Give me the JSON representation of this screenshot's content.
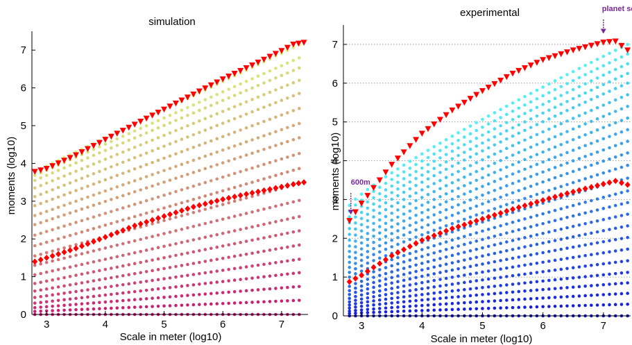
{
  "chart_data": [
    {
      "type": "scatter",
      "title": "simulation",
      "xlabel": "Scale in meter (log10)",
      "ylabel": "moments (log10)",
      "xlim": [
        2.75,
        7.45
      ],
      "ylim": [
        0,
        7.5
      ],
      "xticks": [
        3,
        4,
        5,
        6,
        7
      ],
      "yticks": [
        0,
        1,
        2,
        3,
        4,
        5,
        6,
        7
      ],
      "grid": false,
      "dot_curves": {
        "x_start": 2.8,
        "x_end": 7.38,
        "x_step": 0.1,
        "count": 20,
        "start_values": [
          0.0,
          0.08,
          0.18,
          0.3,
          0.45,
          0.62,
          0.82,
          1.05,
          1.3,
          1.55,
          1.82,
          2.1,
          2.38,
          2.62,
          2.88,
          3.12,
          3.35,
          3.55,
          3.68,
          3.78
        ],
        "end_values": [
          0.0,
          0.38,
          0.75,
          1.12,
          1.48,
          1.86,
          2.24,
          2.62,
          3.05,
          3.5,
          3.9,
          4.3,
          4.72,
          5.1,
          5.5,
          5.9,
          6.25,
          6.58,
          6.85,
          7.2
        ],
        "color_gradient": [
          "#c81472",
          "#d9f07c"
        ]
      },
      "series": [
        {
          "name": "",
          "marker": "triangle-down",
          "color": "#ff0000",
          "x": [
            2.8,
            3.0,
            3.5,
            4.0,
            4.5,
            5.0,
            5.5,
            6.0,
            6.5,
            7.0,
            7.2,
            7.38
          ],
          "y": [
            3.78,
            3.86,
            4.22,
            4.63,
            5.03,
            5.43,
            5.83,
            6.23,
            6.6,
            6.98,
            7.15,
            7.2
          ]
        },
        {
          "name": "",
          "marker": "diamond",
          "color": "#ff0000",
          "x": [
            2.8,
            3.0,
            3.5,
            4.0,
            4.5,
            5.0,
            5.5,
            6.0,
            6.5,
            7.0,
            7.2,
            7.38
          ],
          "y": [
            1.4,
            1.5,
            1.75,
            2.05,
            2.35,
            2.6,
            2.85,
            3.05,
            3.22,
            3.38,
            3.45,
            3.5
          ]
        }
      ]
    },
    {
      "type": "scatter",
      "title": "experimental",
      "xlabel": "Scale in meter (log10)",
      "ylabel": "moments (log10)",
      "xlim": [
        2.7,
        7.45
      ],
      "ylim": [
        0,
        7.5
      ],
      "xticks": [
        3,
        4,
        5,
        6,
        7
      ],
      "yticks": [
        0,
        1,
        2,
        3,
        4,
        5,
        6,
        7
      ],
      "grid": "horizontal dotted",
      "dot_curves": {
        "x_start": 2.8,
        "x_end": 7.4,
        "x_step": 0.1,
        "count": 25,
        "start_values": [
          0.0,
          0.06,
          0.12,
          0.2,
          0.28,
          0.36,
          0.45,
          0.55,
          0.65,
          0.76,
          0.88,
          1.0,
          1.12,
          1.25,
          1.38,
          1.52,
          1.66,
          1.8,
          1.95,
          2.1,
          2.25,
          2.4,
          2.55,
          2.7,
          2.85
        ],
        "end_values": [
          0.0,
          0.3,
          0.58,
          0.85,
          1.12,
          1.42,
          1.72,
          2.02,
          2.32,
          2.62,
          2.92,
          3.22,
          3.55,
          3.88,
          4.2,
          4.5,
          4.8,
          5.1,
          5.4,
          5.7,
          6.0,
          6.25,
          6.5,
          6.75,
          7.0
        ],
        "color_gradient": [
          "#1418d8",
          "#52f0f5"
        ]
      },
      "series": [
        {
          "name": "",
          "marker": "triangle-down",
          "color": "#ff0000",
          "x": [
            2.8,
            3.0,
            3.5,
            4.0,
            4.5,
            5.0,
            5.5,
            6.0,
            6.5,
            7.0,
            7.2,
            7.4
          ],
          "y": [
            2.45,
            2.9,
            3.9,
            4.7,
            5.3,
            5.8,
            6.25,
            6.6,
            6.85,
            7.05,
            7.08,
            6.85
          ]
        },
        {
          "name": "",
          "marker": "diamond",
          "color": "#ff0000",
          "x": [
            2.8,
            3.0,
            3.5,
            4.0,
            4.5,
            5.0,
            5.5,
            6.0,
            6.5,
            7.0,
            7.2,
            7.4
          ],
          "y": [
            0.88,
            1.05,
            1.55,
            1.95,
            2.25,
            2.5,
            2.75,
            2.98,
            3.2,
            3.4,
            3.48,
            3.38
          ]
        }
      ],
      "annotations": [
        {
          "text": "600m",
          "x": 2.8,
          "y": 2.45
        },
        {
          "text": "planet scale",
          "x": 7.0,
          "y": 7.08
        }
      ]
    }
  ]
}
